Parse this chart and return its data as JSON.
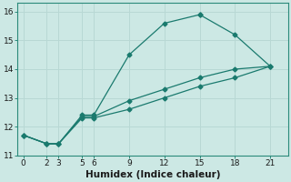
{
  "title": "",
  "xlabel": "Humidex (Indice chaleur)",
  "ylabel": "",
  "bg_color": "#cce8e4",
  "line_color": "#1a7a6e",
  "grid_color": "#b8d8d4",
  "series": [
    {
      "x": [
        0,
        2,
        3,
        5,
        6,
        9,
        12,
        15
      ],
      "y": [
        11.7,
        11.4,
        11.4,
        12.4,
        12.4,
        14.5,
        15.6,
        15.9
      ]
    },
    {
      "x": [
        15,
        18,
        21
      ],
      "y": [
        15.9,
        15.2,
        14.1
      ]
    },
    {
      "x": [
        0,
        2,
        3,
        5,
        6,
        9,
        12,
        15,
        18,
        21
      ],
      "y": [
        11.7,
        11.4,
        11.4,
        12.35,
        12.35,
        12.9,
        13.3,
        13.7,
        14.0,
        14.1
      ]
    },
    {
      "x": [
        0,
        2,
        3,
        5,
        6,
        9,
        12,
        15,
        18,
        21
      ],
      "y": [
        11.7,
        11.4,
        11.4,
        12.3,
        12.3,
        12.6,
        13.0,
        13.4,
        13.7,
        14.1
      ]
    }
  ],
  "xlim": [
    -0.5,
    22.5
  ],
  "ylim": [
    11.0,
    16.3
  ],
  "xticks": [
    0,
    2,
    3,
    5,
    6,
    9,
    12,
    15,
    18,
    21
  ],
  "yticks": [
    11,
    12,
    13,
    14,
    15,
    16
  ],
  "tick_fontsize": 6.5,
  "xlabel_fontsize": 7.5
}
